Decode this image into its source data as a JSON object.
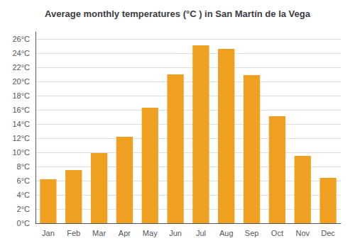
{
  "chart_data": {
    "type": "bar",
    "title": "Average monthly temperatures (°C ) in San Martín de la Vega",
    "categories": [
      "Jan",
      "Feb",
      "Mar",
      "Apr",
      "May",
      "Jun",
      "Jul",
      "Aug",
      "Sep",
      "Oct",
      "Nov",
      "Dec"
    ],
    "values": [
      6.2,
      7.5,
      9.9,
      12.2,
      16.3,
      21.0,
      25.1,
      24.6,
      20.9,
      15.1,
      9.5,
      6.4
    ],
    "color": "#F0A020",
    "ylim": [
      0,
      27
    ],
    "yticks": [
      {
        "value": 0,
        "label": "0°C"
      },
      {
        "value": 2,
        "label": "2°C"
      },
      {
        "value": 4,
        "label": "4°C"
      },
      {
        "value": 6,
        "label": "6°C"
      },
      {
        "value": 8,
        "label": "8°C"
      },
      {
        "value": 10,
        "label": "10°C"
      },
      {
        "value": 12,
        "label": "12°C"
      },
      {
        "value": 14,
        "label": "14°C"
      },
      {
        "value": 16,
        "label": "16°C"
      },
      {
        "value": 18,
        "label": "18°C"
      },
      {
        "value": 20,
        "label": "20°C"
      },
      {
        "value": 22,
        "label": "22°C"
      },
      {
        "value": 24,
        "label": "24°C"
      },
      {
        "value": 26,
        "label": "26°C"
      }
    ],
    "grid": true
  }
}
